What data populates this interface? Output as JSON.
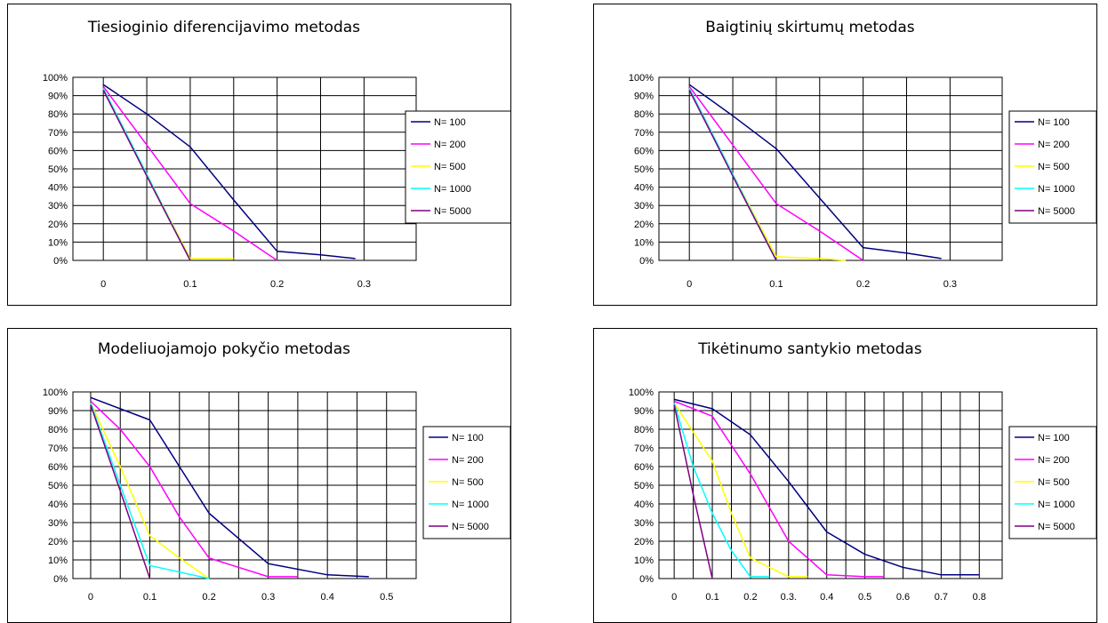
{
  "chart_data": [
    {
      "type": "line",
      "title": "Tiesioginio diferencijavimo metodas",
      "x_ticks": [
        "0",
        "0.1",
        "0.2",
        "0.3"
      ],
      "y_ticks": [
        "100%",
        "90%",
        "80%",
        "70%",
        "60%",
        "50%",
        "40%",
        "30%",
        "20%",
        "10%",
        "0%"
      ],
      "xlim": [
        -0.035,
        0.36
      ],
      "ylim": [
        0,
        100
      ],
      "grid": true,
      "legend_position": "right",
      "series": [
        {
          "name": "N= 100",
          "color": "#000080",
          "x": [
            0,
            0.05,
            0.1,
            0.15,
            0.2,
            0.25,
            0.29
          ],
          "y": [
            96,
            80,
            62,
            33,
            5,
            3,
            1
          ]
        },
        {
          "name": "N= 200",
          "color": "#ff00ff",
          "x": [
            0,
            0.05,
            0.1,
            0.15,
            0.2
          ],
          "y": [
            95,
            63,
            31,
            16,
            0
          ]
        },
        {
          "name": "N= 500",
          "color": "#ffff00",
          "x": [
            0,
            0.05,
            0.1,
            0.15
          ],
          "y": [
            94,
            47,
            1,
            1
          ]
        },
        {
          "name": "N= 1000",
          "color": "#00ffff",
          "x": [
            0,
            0.05,
            0.1
          ],
          "y": [
            94,
            47,
            0
          ]
        },
        {
          "name": "N= 5000",
          "color": "#800080",
          "x": [
            0,
            0.05,
            0.1
          ],
          "y": [
            93,
            46,
            0
          ]
        }
      ]
    },
    {
      "type": "line",
      "title": "Baigtinių skirtumų metodas",
      "x_ticks": [
        "0",
        "0.1",
        "0.2",
        "0.3"
      ],
      "y_ticks": [
        "100%",
        "90%",
        "80%",
        "70%",
        "60%",
        "50%",
        "40%",
        "30%",
        "20%",
        "10%",
        "0%"
      ],
      "xlim": [
        -0.035,
        0.36
      ],
      "ylim": [
        0,
        100
      ],
      "grid": true,
      "legend_position": "right",
      "series": [
        {
          "name": "N= 100",
          "color": "#000080",
          "x": [
            0,
            0.05,
            0.1,
            0.15,
            0.2,
            0.25,
            0.29
          ],
          "y": [
            96,
            79,
            61,
            34,
            7,
            4,
            1
          ]
        },
        {
          "name": "N= 200",
          "color": "#ff00ff",
          "x": [
            0,
            0.05,
            0.1,
            0.15,
            0.2
          ],
          "y": [
            95,
            63,
            31,
            16,
            0
          ]
        },
        {
          "name": "N= 500",
          "color": "#ffff00",
          "x": [
            0,
            0.05,
            0.1,
            0.15,
            0.18
          ],
          "y": [
            94,
            47,
            2,
            1,
            0
          ]
        },
        {
          "name": "N= 1000",
          "color": "#00ffff",
          "x": [
            0,
            0.05,
            0.1
          ],
          "y": [
            94,
            47,
            0
          ]
        },
        {
          "name": "N= 5000",
          "color": "#800080",
          "x": [
            0,
            0.05,
            0.1
          ],
          "y": [
            93,
            46,
            0
          ]
        }
      ]
    },
    {
      "type": "line",
      "title": "Modeliuojamojo pokyčio metodas",
      "x_ticks": [
        "0",
        "0.1",
        "0.2",
        "0.3",
        "0.4",
        "0.5"
      ],
      "y_ticks": [
        "100%",
        "90%",
        "80%",
        "70%",
        "60%",
        "50%",
        "40%",
        "30%",
        "20%",
        "10%",
        "0%"
      ],
      "xlim": [
        -0.03,
        0.55
      ],
      "ylim": [
        0,
        100
      ],
      "grid": true,
      "legend_position": "right",
      "series": [
        {
          "name": "N= 100",
          "color": "#000080",
          "x": [
            0,
            0.1,
            0.2,
            0.3,
            0.4,
            0.47
          ],
          "y": [
            97,
            85,
            35,
            8,
            2,
            1
          ]
        },
        {
          "name": "N= 200",
          "color": "#ff00ff",
          "x": [
            0,
            0.05,
            0.1,
            0.15,
            0.2,
            0.3,
            0.35
          ],
          "y": [
            95,
            80,
            60,
            33,
            11,
            1,
            1
          ]
        },
        {
          "name": "N= 500",
          "color": "#ffff00",
          "x": [
            0,
            0.05,
            0.1,
            0.15,
            0.2
          ],
          "y": [
            94,
            60,
            23,
            11,
            0
          ]
        },
        {
          "name": "N= 1000",
          "color": "#00ffff",
          "x": [
            0,
            0.05,
            0.1,
            0.2
          ],
          "y": [
            94,
            50,
            7,
            0
          ]
        },
        {
          "name": "N= 5000",
          "color": "#800080",
          "x": [
            0,
            0.05,
            0.1
          ],
          "y": [
            93,
            47,
            0
          ]
        }
      ]
    },
    {
      "type": "line",
      "title": "Tikėtinumo santykio metodas",
      "x_ticks": [
        "0",
        "0.1",
        "0.2",
        "0.3.",
        "0.4",
        "0.5",
        "0.6",
        "0.7",
        "0.8"
      ],
      "y_ticks": [
        "100%",
        "90%",
        "80%",
        "70%",
        "60%",
        "50%",
        "40%",
        "30%",
        "20%",
        "10%",
        "0%"
      ],
      "xlim": [
        -0.04,
        0.86
      ],
      "ylim": [
        0,
        100
      ],
      "grid": true,
      "legend_position": "right",
      "series": [
        {
          "name": "N= 100",
          "color": "#000080",
          "x": [
            0,
            0.1,
            0.2,
            0.3,
            0.4,
            0.5,
            0.6,
            0.7,
            0.8
          ],
          "y": [
            96,
            91,
            77,
            52,
            25,
            13,
            6,
            2,
            2
          ]
        },
        {
          "name": "N= 200",
          "color": "#ff00ff",
          "x": [
            0,
            0.1,
            0.2,
            0.3,
            0.4,
            0.5,
            0.55
          ],
          "y": [
            95,
            87,
            56,
            20,
            2,
            1,
            1
          ]
        },
        {
          "name": "N= 500",
          "color": "#ffff00",
          "x": [
            0,
            0.1,
            0.15,
            0.2,
            0.3,
            0.35
          ],
          "y": [
            94,
            63,
            35,
            11,
            1,
            1
          ]
        },
        {
          "name": "N= 1000",
          "color": "#00ffff",
          "x": [
            0,
            0.05,
            0.1,
            0.15,
            0.2,
            0.25
          ],
          "y": [
            94,
            60,
            35,
            15,
            1,
            1
          ]
        },
        {
          "name": "N= 5000",
          "color": "#800080",
          "x": [
            0,
            0.05,
            0.1
          ],
          "y": [
            93,
            45,
            0
          ]
        }
      ]
    }
  ]
}
